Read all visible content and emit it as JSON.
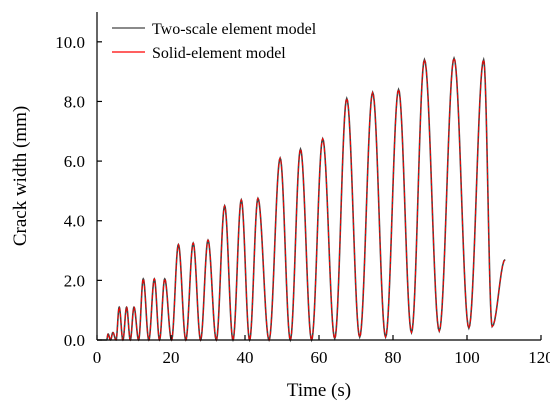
{
  "chart_data": {
    "type": "line",
    "xlabel": "Time (s)",
    "ylabel": "Crack width (mm)",
    "xlim": [
      0,
      120
    ],
    "ylim": [
      0,
      11
    ],
    "xticks": [
      "0",
      "20",
      "40",
      "60",
      "80",
      "100",
      "120"
    ],
    "yticks": [
      "0.0",
      "2.0",
      "4.0",
      "6.0",
      "8.0",
      "10.0"
    ],
    "grid": false,
    "legend_position": "top-left",
    "series": [
      {
        "name": "Two-scale element model",
        "color": "#444444"
      },
      {
        "name": "Solid-element model",
        "color": "#ff0000"
      }
    ],
    "peaks": [
      {
        "t": 3.0,
        "peak": 0.2,
        "trough": 0.0
      },
      {
        "t": 4.3,
        "peak": 0.25,
        "trough": 0.0
      },
      {
        "t": 6.0,
        "peak": 1.1,
        "trough": 0.0
      },
      {
        "t": 8.0,
        "peak": 1.1,
        "trough": 0.0
      },
      {
        "t": 10.0,
        "peak": 1.1,
        "trough": 0.0
      },
      {
        "t": 12.5,
        "peak": 2.05,
        "trough": 0.0
      },
      {
        "t": 15.5,
        "peak": 2.05,
        "trough": 0.0
      },
      {
        "t": 18.3,
        "peak": 2.05,
        "trough": 0.0
      },
      {
        "t": 22.0,
        "peak": 3.2,
        "trough": 0.0
      },
      {
        "t": 26.0,
        "peak": 3.25,
        "trough": 0.0
      },
      {
        "t": 30.0,
        "peak": 3.35,
        "trough": 0.0
      },
      {
        "t": 34.5,
        "peak": 4.5,
        "trough": 0.0
      },
      {
        "t": 39.0,
        "peak": 4.7,
        "trough": 0.0
      },
      {
        "t": 43.5,
        "peak": 4.75,
        "trough": 0.0
      },
      {
        "t": 49.5,
        "peak": 6.1,
        "trough": 0.0
      },
      {
        "t": 55.0,
        "peak": 6.4,
        "trough": 0.0
      },
      {
        "t": 61.0,
        "peak": 6.75,
        "trough": 0.0
      },
      {
        "t": 67.5,
        "peak": 8.1,
        "trough": 0.05
      },
      {
        "t": 74.5,
        "peak": 8.3,
        "trough": 0.1
      },
      {
        "t": 81.5,
        "peak": 8.4,
        "trough": 0.1
      },
      {
        "t": 88.5,
        "peak": 9.4,
        "trough": 0.25
      },
      {
        "t": 96.5,
        "peak": 9.45,
        "trough": 0.3
      },
      {
        "t": 104.5,
        "peak": 9.4,
        "trough": 0.4
      }
    ],
    "end": {
      "t": 110.3,
      "value": 2.7
    }
  }
}
